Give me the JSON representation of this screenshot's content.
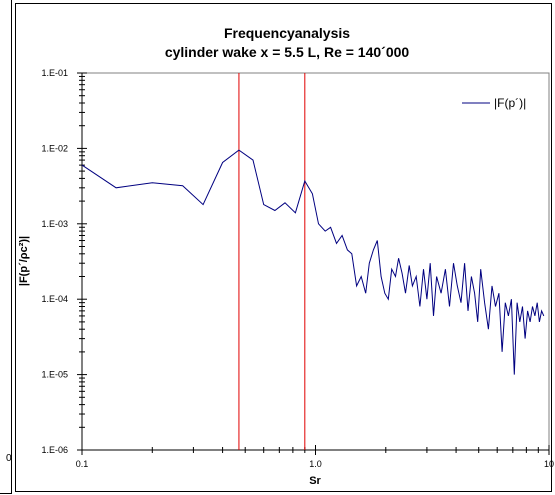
{
  "chart_data": {
    "type": "line",
    "title": "Frequencyanalysis",
    "subtitle": "cylinder wake x = 5.5 L, Re = 140´000",
    "xlabel": "Sr",
    "ylabel": "|F(p´/ρc²)|",
    "x_scale": "log",
    "y_scale": "log",
    "xlim": [
      0.1,
      10
    ],
    "ylim": [
      1e-06,
      0.1
    ],
    "x_ticks": [
      "0.1",
      "1.0",
      "10"
    ],
    "y_ticks": [
      "1.E-06",
      "1.E-05",
      "1.E-04",
      "1.E-03",
      "1.E-02",
      "1.E-01"
    ],
    "legend": {
      "position": "top-right",
      "entries": [
        "|F(p´)|"
      ]
    },
    "grid": false,
    "series_color": "#000080",
    "marker_color": "#e00000",
    "vertical_markers": [
      0.47,
      0.9
    ],
    "series": [
      {
        "name": "|F(p´)|",
        "x": [
          0.1,
          0.14,
          0.2,
          0.27,
          0.33,
          0.4,
          0.47,
          0.54,
          0.6,
          0.67,
          0.74,
          0.82,
          0.9,
          0.97,
          1.03,
          1.1,
          1.16,
          1.23,
          1.3,
          1.37,
          1.43,
          1.5,
          1.57,
          1.64,
          1.7,
          1.77,
          1.84,
          1.91,
          1.98,
          2.05,
          2.12,
          2.2,
          2.27,
          2.35,
          2.43,
          2.52,
          2.6,
          2.7,
          2.8,
          2.9,
          3.0,
          3.1,
          3.2,
          3.3,
          3.45,
          3.6,
          3.75,
          3.9,
          4.05,
          4.2,
          4.35,
          4.5,
          4.65,
          4.8,
          4.95,
          5.1,
          5.3,
          5.5,
          5.7,
          5.9,
          6.1,
          6.3,
          6.5,
          6.7,
          6.9,
          7.1,
          7.3,
          7.5,
          7.7,
          7.9,
          8.1,
          8.3,
          8.5,
          8.7,
          8.9,
          9.1,
          9.3,
          9.5
        ],
        "y": [
          0.006,
          0.003,
          0.0035,
          0.0032,
          0.0018,
          0.0065,
          0.0095,
          0.007,
          0.0018,
          0.0015,
          0.0019,
          0.0014,
          0.0037,
          0.0025,
          0.001,
          0.0008,
          0.0009,
          0.00055,
          0.0007,
          0.00045,
          0.0004,
          0.00015,
          0.0002,
          0.00012,
          0.0003,
          0.00045,
          0.0006,
          0.0002,
          0.00012,
          0.0001,
          0.00025,
          0.0002,
          0.00035,
          0.00022,
          0.00012,
          0.00028,
          0.00015,
          0.0002,
          8e-05,
          0.00025,
          0.0001,
          0.0003,
          6e-05,
          0.0002,
          0.00012,
          0.00025,
          8e-05,
          0.0003,
          0.00015,
          9e-05,
          0.0003,
          7e-05,
          0.0002,
          0.00012,
          5e-05,
          0.00025,
          9e-05,
          4e-05,
          0.00015,
          8e-05,
          0.00012,
          2e-05,
          9e-05,
          6e-05,
          0.0001,
          1e-05,
          9e-05,
          5e-05,
          8e-05,
          3e-05,
          7e-05,
          5e-05,
          8e-05,
          6e-05,
          9e-05,
          5e-05,
          7e-05,
          6e-05
        ]
      }
    ]
  },
  "page": {
    "left_stub": "0"
  }
}
